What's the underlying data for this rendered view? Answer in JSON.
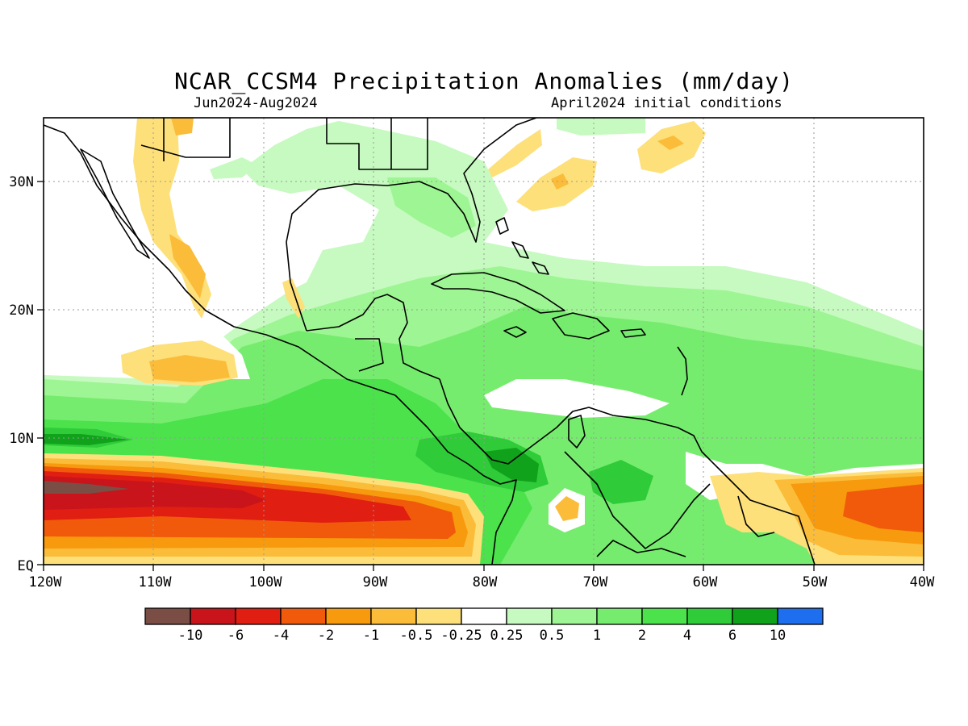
{
  "title": "NCAR_CCSM4 Precipitation Anomalies (mm/day)",
  "period": "Jun2024-Aug2024",
  "init": "April2024 initial conditions",
  "lat_labels": [
    "30N",
    "20N",
    "10N",
    "EQ"
  ],
  "lon_labels": [
    "120W",
    "110W",
    "100W",
    "90W",
    "80W",
    "70W",
    "60W",
    "50W",
    "40W"
  ],
  "colorbar": {
    "colors": [
      "#7a4e45",
      "#c8141a",
      "#e01e12",
      "#f05a0a",
      "#f79a0d",
      "#fbbc3a",
      "#fde07a",
      "#ffffff",
      "#c6fac0",
      "#9ef593",
      "#76ec6e",
      "#4be24c",
      "#2fcb39",
      "#11a21b",
      "#1e6ef0"
    ],
    "labels": [
      "-10",
      "-6",
      "-4",
      "-2",
      "-1",
      "-0.5",
      "-0.25",
      "0.25",
      "0.5",
      "1",
      "2",
      "4",
      "6",
      "10"
    ]
  },
  "colors": {
    "land": "#ffffff",
    "coast": "#000000",
    "grid": "#9a9a9a"
  }
}
